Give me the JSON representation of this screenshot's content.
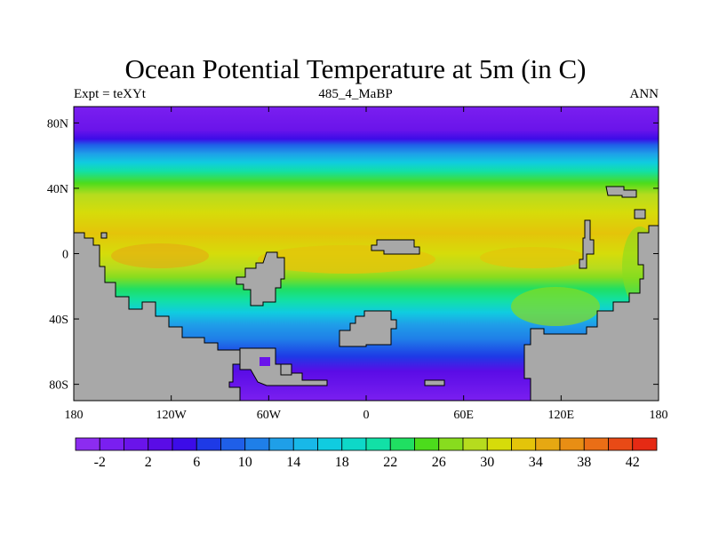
{
  "title": "Ocean Potential Temperature at 5m (in C)",
  "left_subtitle": "Expt = teXYt",
  "center_subtitle": "485_4_MaBP",
  "right_subtitle": "ANN",
  "lat_ticks": [
    {
      "label": "80N",
      "value": 80
    },
    {
      "label": "40N",
      "value": 40
    },
    {
      "label": "0",
      "value": 0
    },
    {
      "label": "40S",
      "value": -40
    },
    {
      "label": "80S",
      "value": -80
    }
  ],
  "lon_ticks": [
    {
      "label": "180",
      "value": -180
    },
    {
      "label": "120W",
      "value": -120
    },
    {
      "label": "60W",
      "value": -60
    },
    {
      "label": "0",
      "value": 0
    },
    {
      "label": "60E",
      "value": 60
    },
    {
      "label": "120E",
      "value": 120
    },
    {
      "label": "180",
      "value": 180
    }
  ],
  "colorbar": {
    "levels": [
      -4,
      -2,
      0,
      2,
      4,
      6,
      8,
      10,
      12,
      14,
      16,
      18,
      20,
      22,
      24,
      26,
      28,
      30,
      32,
      34,
      36,
      38,
      40,
      42,
      44
    ],
    "labels": [
      "-2",
      "2",
      "6",
      "10",
      "14",
      "18",
      "22",
      "26",
      "30",
      "34",
      "38",
      "42"
    ],
    "colors": [
      "#8c2cf0",
      "#7a1ff0",
      "#6a14ea",
      "#5a0ce6",
      "#3c0ce8",
      "#1e3ae6",
      "#1f5fe8",
      "#1f7fe8",
      "#1f9fe8",
      "#18b8e8",
      "#10cce0",
      "#0ed8c8",
      "#12e0a6",
      "#20df62",
      "#4cdc1c",
      "#88dc1e",
      "#b6dc1e",
      "#d6dc0a",
      "#e4c40a",
      "#e6a812",
      "#e88e14",
      "#ea6e16",
      "#e84a16",
      "#e52a14"
    ]
  },
  "land_color": "#a8a8a8"
}
